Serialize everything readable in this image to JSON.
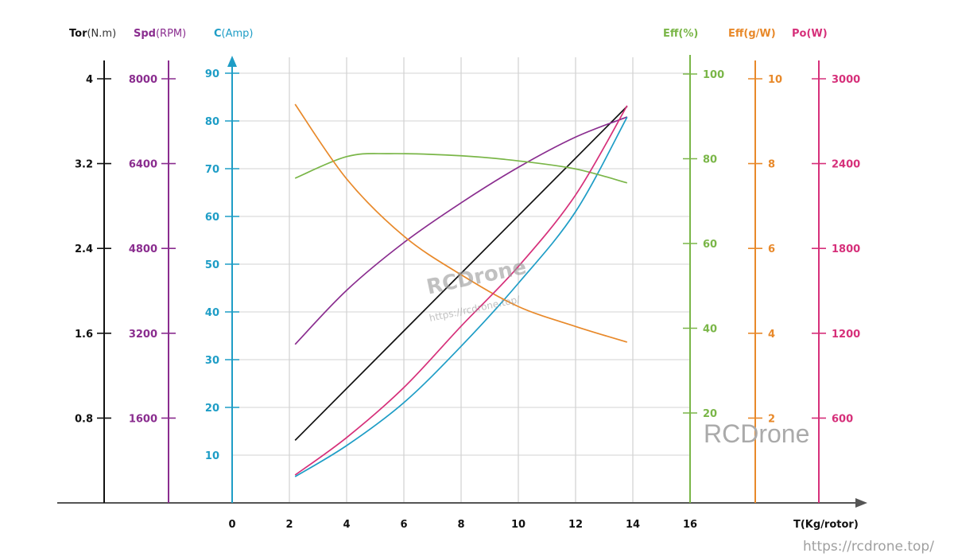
{
  "chart_data": {
    "type": "line",
    "xlabel": "T(Kg/rotor)",
    "xlim": [
      0,
      16
    ],
    "xticks": [
      "0",
      "2",
      "4",
      "6",
      "8",
      "10",
      "12",
      "14",
      "16"
    ],
    "grid": true,
    "axes": [
      {
        "key": "tor",
        "bold": "Tor",
        "unit": "(N.m)",
        "side": "left",
        "color": "#111111",
        "lim": [
          0,
          4
        ],
        "ticks": [
          0.8,
          1.6,
          2.4,
          3.2,
          4
        ],
        "tick_labels": [
          "0.8",
          "1.6",
          "2.4",
          "3.2",
          "4"
        ]
      },
      {
        "key": "spd",
        "bold": "Spd",
        "unit": "(RPM)",
        "side": "left",
        "color": "#8a2d8f",
        "lim": [
          0,
          8000
        ],
        "ticks": [
          1600,
          3200,
          4800,
          6400,
          8000
        ],
        "tick_labels": [
          "1600",
          "3200",
          "4800",
          "6400",
          "8000"
        ]
      },
      {
        "key": "c",
        "bold": "C",
        "unit": "(Amp)",
        "side": "left",
        "color": "#1e9dc6",
        "lim": [
          0,
          90
        ],
        "ticks": [
          10,
          20,
          30,
          40,
          50,
          60,
          70,
          80,
          90
        ],
        "tick_labels": [
          "10",
          "20",
          "30",
          "40",
          "50",
          "60",
          "70",
          "80",
          "90"
        ]
      },
      {
        "key": "effp",
        "bold": "Eff",
        "unit": "(%)",
        "side": "right",
        "color": "#7ab648",
        "lim": [
          0,
          100
        ],
        "ticks": [
          20,
          40,
          60,
          80,
          100
        ],
        "tick_labels": [
          "20",
          "40",
          "60",
          "80",
          "100"
        ]
      },
      {
        "key": "effg",
        "bold": "Eff",
        "unit": "(g/W)",
        "side": "right",
        "color": "#e8892a",
        "lim": [
          0,
          10
        ],
        "ticks": [
          2,
          4,
          6,
          8,
          10
        ],
        "tick_labels": [
          "2",
          "4",
          "6",
          "8",
          "10"
        ]
      },
      {
        "key": "po",
        "bold": "Po",
        "unit": "(W)",
        "side": "right",
        "color": "#d6307a",
        "lim": [
          0,
          3000
        ],
        "ticks": [
          600,
          1200,
          1800,
          2400,
          3000
        ],
        "tick_labels": [
          "600",
          "1200",
          "1800",
          "2400",
          "3000"
        ]
      }
    ],
    "series": [
      {
        "axis": "tor",
        "color": "#111111",
        "x": [
          2.2,
          13.8
        ],
        "y": [
          0.59,
          3.74
        ]
      },
      {
        "axis": "spd",
        "color": "#8a2d8f",
        "x": [
          2.2,
          4,
          6,
          8,
          10,
          12,
          13.8
        ],
        "y": [
          2990,
          4010,
          4910,
          5660,
          6330,
          6900,
          7280
        ]
      },
      {
        "axis": "c",
        "color": "#1e9dc6",
        "x": [
          2.2,
          4,
          6,
          8,
          10,
          12,
          13.8
        ],
        "y": [
          5.5,
          12,
          21,
          32.8,
          46,
          61,
          80.8
        ]
      },
      {
        "axis": "effp",
        "color": "#7ab648",
        "x": [
          2.2,
          4,
          5.5,
          8,
          10,
          12,
          13.8
        ],
        "y": [
          75.4,
          80.5,
          81.2,
          80.7,
          79.5,
          77.6,
          74.3
        ]
      },
      {
        "axis": "effg",
        "color": "#e8892a",
        "x": [
          2.2,
          4,
          6,
          8,
          10,
          12,
          13.8
        ],
        "y": [
          9.4,
          7.64,
          6.29,
          5.38,
          4.63,
          4.16,
          3.79
        ]
      },
      {
        "axis": "po",
        "color": "#d6307a",
        "x": [
          2.2,
          4,
          6,
          8,
          10,
          12,
          13.8
        ],
        "y": [
          197,
          462,
          816,
          1250,
          1672,
          2178,
          2810
        ]
      }
    ]
  },
  "watermark": {
    "center_logo": "RCDrone",
    "center_url": "https://rcdrone.top/",
    "corner_logo": "RCDrone",
    "corner_url": "https://rcdrone.top/"
  }
}
